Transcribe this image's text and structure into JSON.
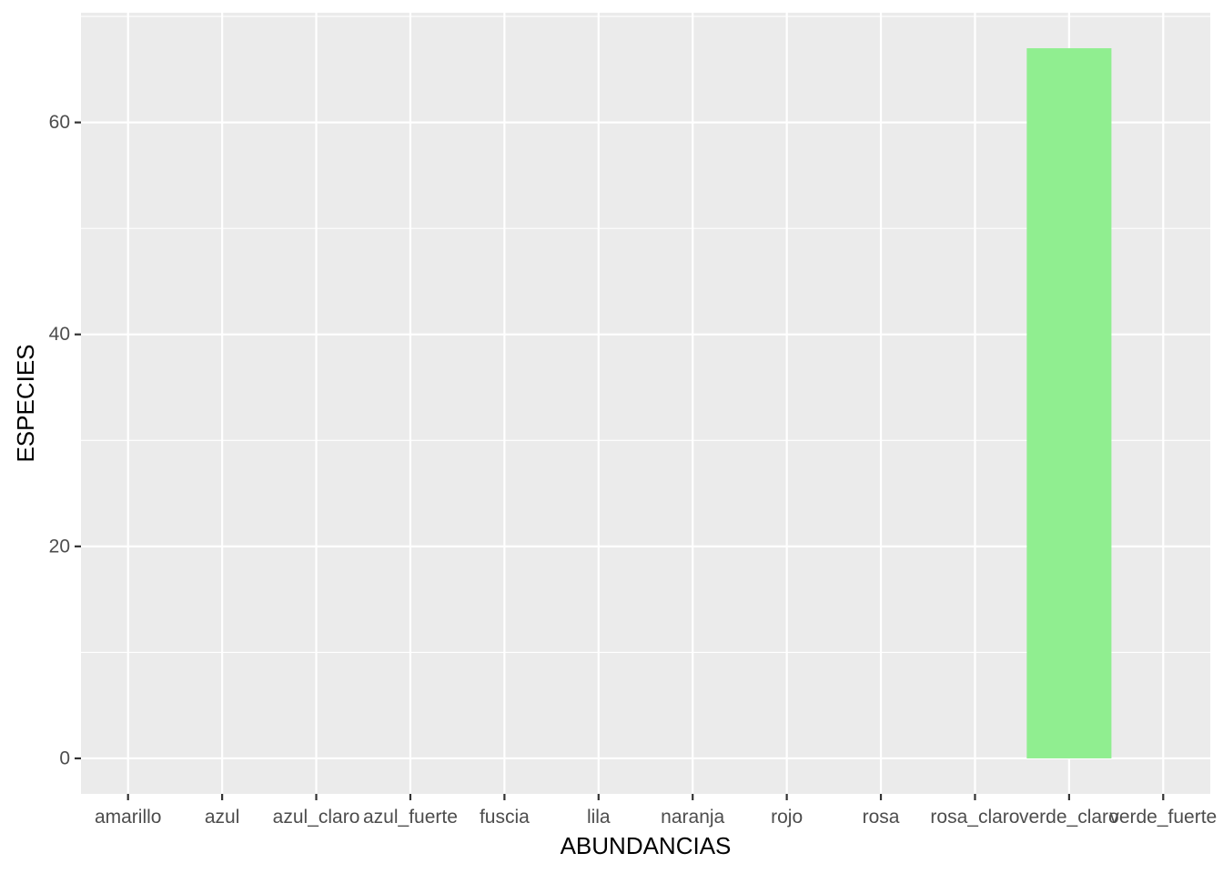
{
  "chart_data": {
    "type": "bar",
    "xlabel": "ABUNDANCIAS",
    "ylabel": "ESPECIES",
    "categories": [
      "amarillo",
      "azul",
      "azul_claro",
      "azul_fuerte",
      "fuscia",
      "lila",
      "naranja",
      "rojo",
      "rosa",
      "rosa_claro",
      "verde_claro",
      "verde_fuerte"
    ],
    "values": [
      0,
      0,
      0,
      0,
      0,
      0,
      0,
      0,
      0,
      0,
      67,
      0
    ],
    "ylim": [
      -3.35,
      70.35
    ],
    "yticks": [
      0,
      20,
      40,
      60
    ],
    "grid": true,
    "colors": {
      "panel_background": "#ebebeb",
      "grid_line": "#ffffff",
      "bar_fill": "#90ee90",
      "tick_label": "#4d4d4d",
      "axis_tick": "#333333"
    }
  }
}
